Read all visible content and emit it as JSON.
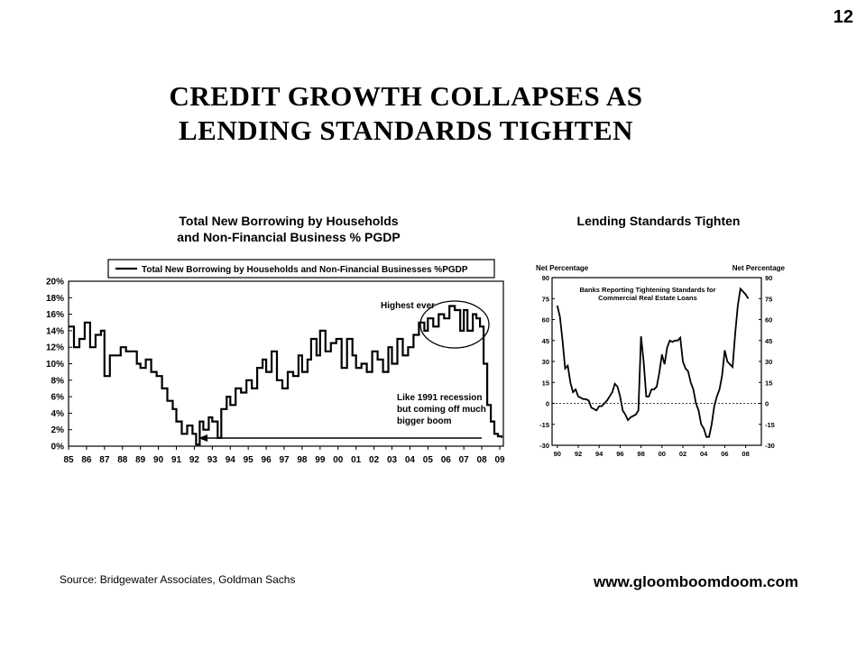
{
  "page_number": "12",
  "title_line1": "CREDIT  GROWTH  COLLAPSES  AS",
  "title_line2": "LENDING  STANDARDS  TIGHTEN",
  "source": "Source: Bridgewater Associates, Goldman Sachs",
  "website": "www.gloomboomdoom.com",
  "colors": {
    "line": "#000000",
    "background": "#ffffff"
  },
  "chart_data": [
    {
      "type": "line",
      "heading_line1": "Total New Borrowing by Households",
      "heading_line2": "and Non-Financial Business % PGDP",
      "legend": "Total New Borrowing by Households and Non-Financial Businesses %PGDP",
      "legend_position": "top",
      "x_ticks": [
        "85",
        "86",
        "87",
        "88",
        "89",
        "90",
        "91",
        "92",
        "93",
        "94",
        "95",
        "96",
        "97",
        "98",
        "99",
        "00",
        "01",
        "02",
        "03",
        "04",
        "05",
        "06",
        "07",
        "08",
        "09"
      ],
      "y_ticks": [
        "20%",
        "18%",
        "16%",
        "14%",
        "12%",
        "10%",
        "8%",
        "6%",
        "4%",
        "2%",
        "0%"
      ],
      "ylim": [
        0,
        20
      ],
      "xlim": [
        1985,
        2009.2
      ],
      "annotations": {
        "peak": "Highest ever",
        "note_line1": "Like 1991 recession",
        "note_line2": "but coming off much",
        "note_line3": "bigger boom"
      },
      "series": [
        {
          "x": [
            1985.0,
            1985.3,
            1985.6,
            1985.9,
            1986.2,
            1986.5,
            1986.8,
            1987.0,
            1987.3,
            1987.6,
            1987.9,
            1988.2,
            1988.5,
            1988.8,
            1989.0,
            1989.3,
            1989.6,
            1989.9,
            1990.2,
            1990.5,
            1990.8,
            1991.0,
            1991.3,
            1991.6,
            1991.9,
            1992.1,
            1992.3,
            1992.5,
            1992.8,
            1993.0,
            1993.3,
            1993.5,
            1993.8,
            1994.0,
            1994.3,
            1994.6,
            1994.9,
            1995.2,
            1995.5,
            1995.8,
            1996.0,
            1996.3,
            1996.6,
            1996.9,
            1997.2,
            1997.5,
            1997.8,
            1998.0,
            1998.3,
            1998.5,
            1998.8,
            1999.0,
            1999.3,
            1999.6,
            1999.9,
            2000.2,
            2000.5,
            2000.8,
            2001.0,
            2001.3,
            2001.6,
            2001.9,
            2002.2,
            2002.5,
            2002.8,
            2003.0,
            2003.3,
            2003.6,
            2003.9,
            2004.2,
            2004.5,
            2004.8,
            2005.0,
            2005.3,
            2005.6,
            2005.9,
            2006.2,
            2006.5,
            2006.8,
            2007.0,
            2007.2,
            2007.5,
            2007.7,
            2007.9,
            2008.1,
            2008.3,
            2008.5,
            2008.7,
            2008.9,
            2009.1
          ],
          "y": [
            14.5,
            12.0,
            13.0,
            15.0,
            12.0,
            13.5,
            14.0,
            8.5,
            11.0,
            11.0,
            12.0,
            11.5,
            11.5,
            10.0,
            9.5,
            10.5,
            9.0,
            8.5,
            7.0,
            5.5,
            4.5,
            3.0,
            1.5,
            2.5,
            1.5,
            0.2,
            3.0,
            2.0,
            3.5,
            3.0,
            1.0,
            4.5,
            6.0,
            5.0,
            7.0,
            6.5,
            8.0,
            7.0,
            9.5,
            10.5,
            9.0,
            11.5,
            8.0,
            7.0,
            9.0,
            8.5,
            11.0,
            9.0,
            10.5,
            13.0,
            11.0,
            14.0,
            11.5,
            12.5,
            13.0,
            9.5,
            13.0,
            11.0,
            9.5,
            10.0,
            9.0,
            11.5,
            10.5,
            9.0,
            12.0,
            10.0,
            13.0,
            11.0,
            12.0,
            13.5,
            15.0,
            14.0,
            15.5,
            14.5,
            16.0,
            15.5,
            17.0,
            16.5,
            14.0,
            16.5,
            14.0,
            16.0,
            15.5,
            14.5,
            10.0,
            5.0,
            3.0,
            1.5,
            1.2,
            1.0
          ]
        }
      ]
    },
    {
      "type": "line",
      "heading": "Lending Standards Tighten",
      "left_axis_label": "Net Percentage",
      "right_axis_label": "Net Percentage",
      "inner_title_line1": "Banks Reporting Tightening Standards for",
      "inner_title_line2": "Commercial Real Estate Loans",
      "x_ticks": [
        "90",
        "92",
        "94",
        "96",
        "98",
        "00",
        "02",
        "04",
        "06",
        "08"
      ],
      "y_ticks": [
        "90",
        "75",
        "60",
        "45",
        "30",
        "15",
        "0",
        "-15",
        "-30"
      ],
      "ylim": [
        -30,
        90
      ],
      "xlim": [
        1989.5,
        2009.5
      ],
      "zero_line": true,
      "series": [
        {
          "x": [
            1990.0,
            1990.25,
            1990.5,
            1990.75,
            1991.0,
            1991.25,
            1991.5,
            1991.75,
            1992.0,
            1992.25,
            1992.5,
            1992.75,
            1993.0,
            1993.25,
            1993.5,
            1993.75,
            1994.0,
            1994.25,
            1994.5,
            1994.75,
            1995.0,
            1995.25,
            1995.5,
            1995.75,
            1996.0,
            1996.25,
            1996.5,
            1996.75,
            1997.0,
            1997.25,
            1997.5,
            1997.75,
            1998.0,
            1998.25,
            1998.5,
            1998.75,
            1999.0,
            1999.25,
            1999.5,
            1999.75,
            2000.0,
            2000.25,
            2000.5,
            2000.75,
            2001.0,
            2001.25,
            2001.5,
            2001.75,
            2002.0,
            2002.25,
            2002.5,
            2002.75,
            2003.0,
            2003.25,
            2003.5,
            2003.75,
            2004.0,
            2004.25,
            2004.5,
            2004.75,
            2005.0,
            2005.25,
            2005.5,
            2005.75,
            2006.0,
            2006.25,
            2006.5,
            2006.75,
            2007.0,
            2007.25,
            2007.5,
            2007.75,
            2008.0,
            2008.25
          ],
          "y": [
            70,
            62,
            45,
            25,
            27,
            15,
            8,
            10,
            5,
            4,
            3,
            3,
            2,
            -3,
            -4,
            -5,
            -2,
            -2,
            0,
            2,
            5,
            8,
            14,
            12,
            5,
            -5,
            -8,
            -12,
            -10,
            -9,
            -8,
            -5,
            48,
            30,
            5,
            5,
            10,
            10,
            12,
            22,
            35,
            28,
            40,
            45,
            44,
            45,
            45,
            47,
            30,
            25,
            23,
            15,
            10,
            0,
            -5,
            -15,
            -18,
            -24,
            -24,
            -15,
            -2,
            5,
            10,
            20,
            38,
            30,
            28,
            26,
            50,
            70,
            82,
            80,
            78,
            75
          ]
        }
      ]
    }
  ]
}
